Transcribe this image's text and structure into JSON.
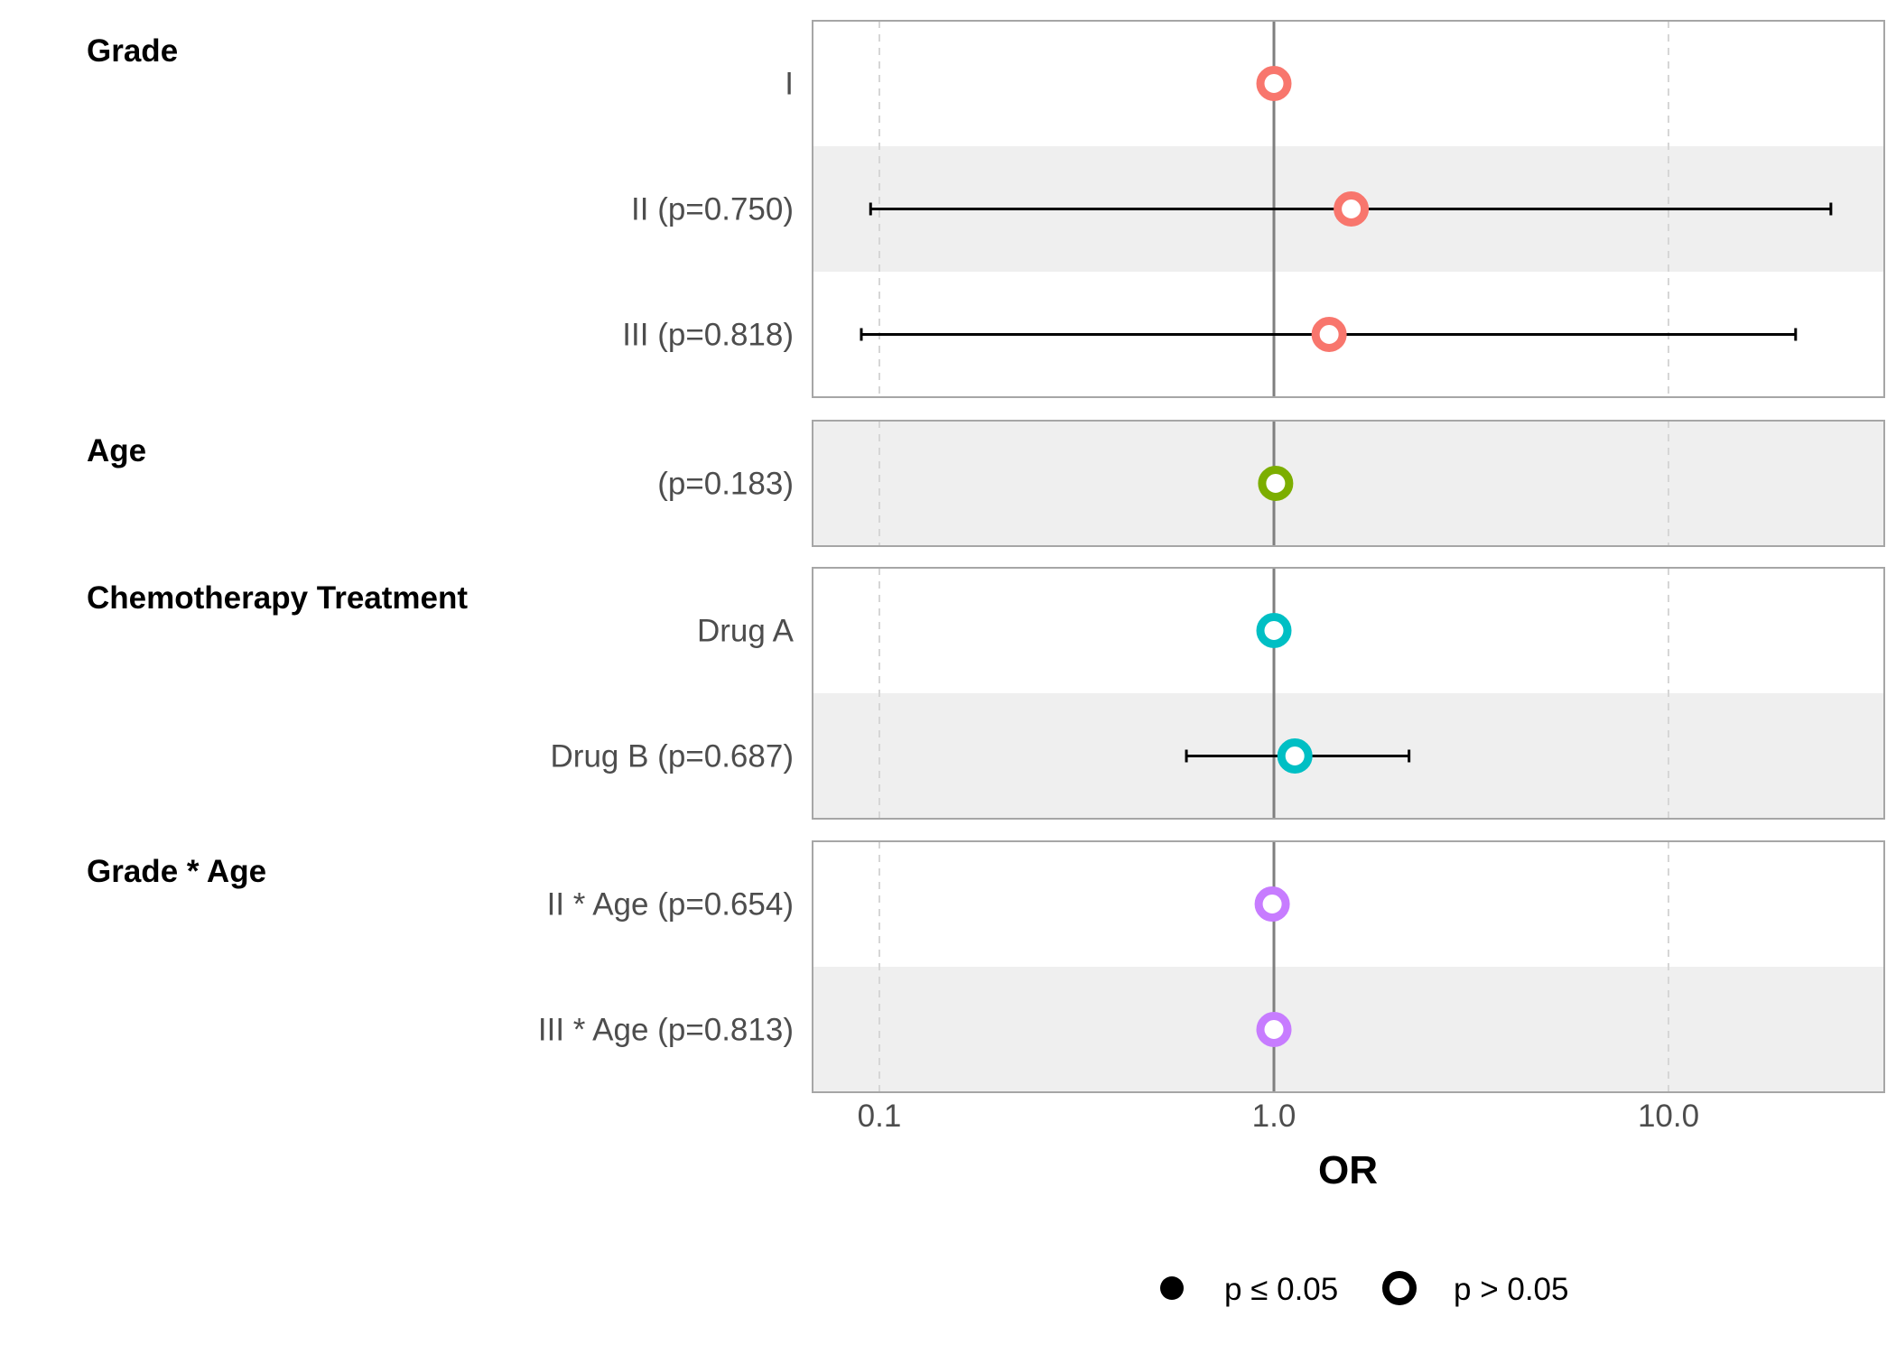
{
  "chart_data": {
    "type": "scatter",
    "subtype": "forest-plot",
    "xlabel": "OR",
    "x_scale": "log10",
    "xlim": [
      0.068,
      31
    ],
    "x_ticks": [
      {
        "value": 0.1,
        "label": "0.1"
      },
      {
        "value": 1.0,
        "label": "1.0"
      },
      {
        "value": 10.0,
        "label": "10.0"
      }
    ],
    "reference_line": 1.0,
    "grid": "vertical dashed major gridlines",
    "groups": [
      {
        "title": "Grade",
        "color": "#F8766D",
        "rows": [
          {
            "label": "I",
            "or": 1.0,
            "ci_low": null,
            "ci_high": null,
            "significant": false
          },
          {
            "label": "II (p=0.750)",
            "or": 1.57,
            "ci_low": 0.095,
            "ci_high": 25.8,
            "significant": false
          },
          {
            "label": "III (p=0.818)",
            "or": 1.38,
            "ci_low": 0.09,
            "ci_high": 21.0,
            "significant": false
          }
        ]
      },
      {
        "title": "Age",
        "color": "#7CAE00",
        "rows": [
          {
            "label": "(p=0.183)",
            "or": 1.01,
            "ci_low": null,
            "ci_high": null,
            "significant": false
          }
        ]
      },
      {
        "title": "Chemotherapy Treatment",
        "color": "#00BFC4",
        "rows": [
          {
            "label": "Drug A",
            "or": 1.0,
            "ci_low": null,
            "ci_high": null,
            "significant": false
          },
          {
            "label": "Drug B (p=0.687)",
            "or": 1.13,
            "ci_low": 0.6,
            "ci_high": 2.2,
            "significant": false
          }
        ]
      },
      {
        "title": "Grade * Age",
        "color": "#C77CFF",
        "rows": [
          {
            "label": "II * Age (p=0.654)",
            "or": 0.99,
            "ci_low": null,
            "ci_high": null,
            "significant": false
          },
          {
            "label": "III * Age (p=0.813)",
            "or": 1.0,
            "ci_low": null,
            "ci_high": null,
            "significant": false
          }
        ]
      }
    ],
    "legend": {
      "placement": "bottom",
      "items": [
        {
          "label": "p ≤ 0.05",
          "symbol": "filled-circle"
        },
        {
          "label": "p > 0.05",
          "symbol": "open-circle"
        }
      ]
    }
  }
}
